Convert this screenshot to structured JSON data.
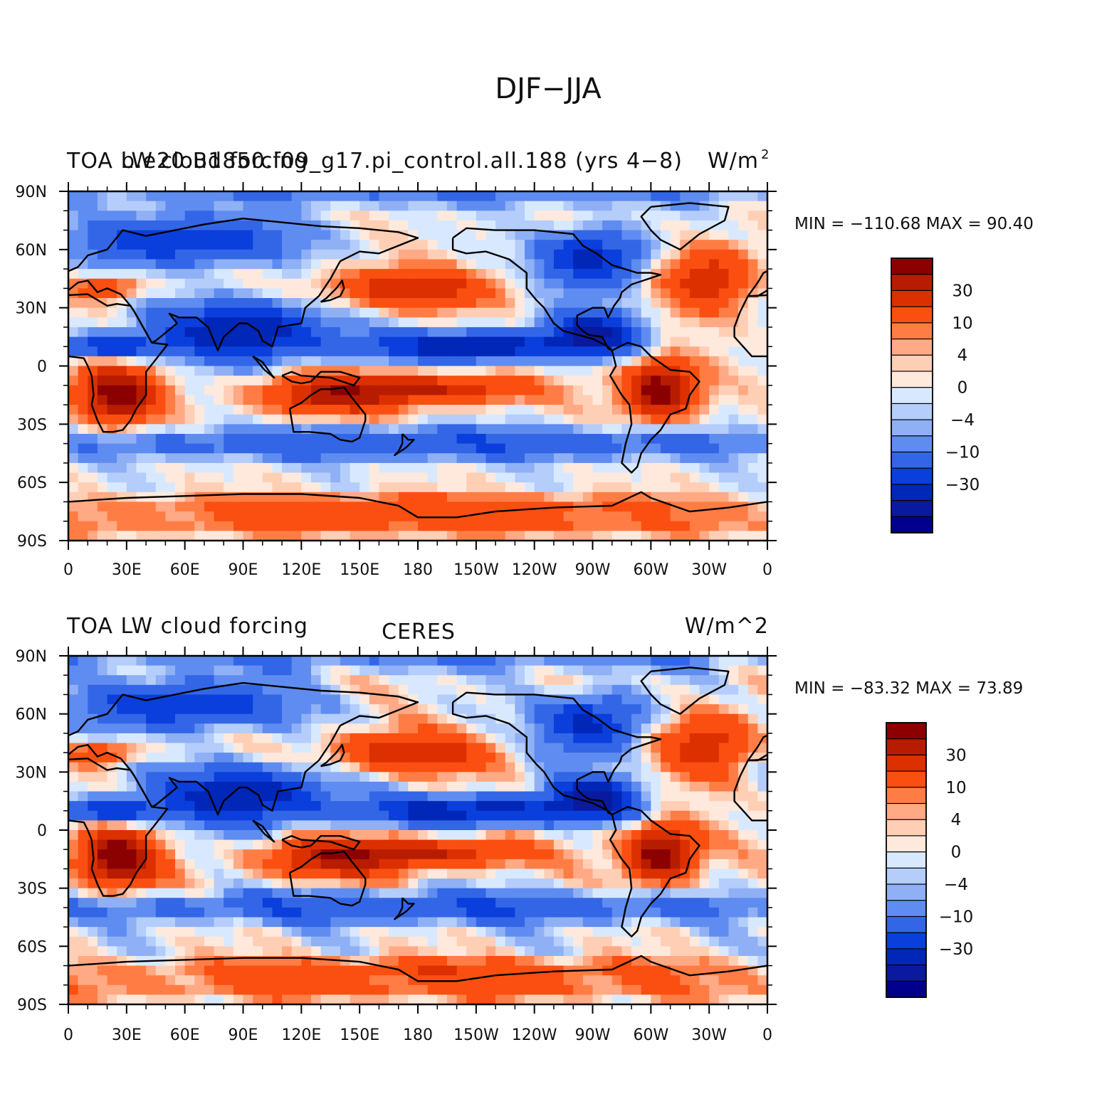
{
  "figure": {
    "title": "DJF−JJA"
  },
  "panels": [
    {
      "id": "model",
      "left_label": "TOA LW cloud forcing",
      "center_label": "b.e20.B1850.f09_g17.pi_control.all.188 (yrs 4−8)",
      "right_label": "W/m",
      "right_label_sup": "2",
      "min_max_text": "MIN = −110.68  MAX =   90.40"
    },
    {
      "id": "obs",
      "left_label": "TOA LW cloud forcing",
      "center_label": "CERES",
      "right_label": "W/m^2",
      "right_label_sup": "",
      "min_max_text": "MIN = −83.32  MAX =   73.89"
    }
  ],
  "axes": {
    "lon_ticks": [
      "0",
      "30E",
      "60E",
      "90E",
      "120E",
      "150E",
      "180",
      "150W",
      "120W",
      "90W",
      "60W",
      "30W",
      "0"
    ],
    "lat_ticks": [
      "90N",
      "60N",
      "30N",
      "0",
      "30S",
      "60S",
      "90S"
    ],
    "lon_range": [
      0,
      360
    ],
    "lat_range": [
      -90,
      90
    ]
  },
  "colorbar": {
    "colors": [
      "#8b0000",
      "#b71c00",
      "#dc3000",
      "#fa4f10",
      "#ff7d45",
      "#ffa985",
      "#ffcfb5",
      "#ffe9dc",
      "#d8e9ff",
      "#b4cdfa",
      "#8fb0f5",
      "#5f8cf0",
      "#3366e6",
      "#0a3fdc",
      "#0027b8",
      "#0a1a9e",
      "#00008c"
    ],
    "labels": [
      "30",
      "10",
      "4",
      "0",
      "−4",
      "−10",
      "−30"
    ]
  },
  "chart_data": [
    {
      "type": "heatmap",
      "title": "TOA LW cloud forcing",
      "subtitle": "b.e20.B1850.f09_g17.pi_control.all.188 (yrs 4−8)",
      "units": "W/m^2",
      "min": -110.68,
      "max": 90.4,
      "xlim": [
        0,
        360
      ],
      "ylim": [
        -90,
        90
      ],
      "levels": [
        -40,
        -30,
        -20,
        -10,
        -6,
        -4,
        -2,
        0,
        2,
        4,
        6,
        10,
        20,
        30,
        40
      ]
    },
    {
      "type": "heatmap",
      "title": "TOA LW cloud forcing",
      "subtitle": "CERES",
      "units": "W/m^2",
      "min": -83.32,
      "max": 73.89,
      "xlim": [
        0,
        360
      ],
      "ylim": [
        -90,
        90
      ],
      "levels": [
        -40,
        -30,
        -20,
        -10,
        -6,
        -4,
        -2,
        0,
        2,
        4,
        6,
        10,
        20,
        30,
        40
      ]
    }
  ]
}
